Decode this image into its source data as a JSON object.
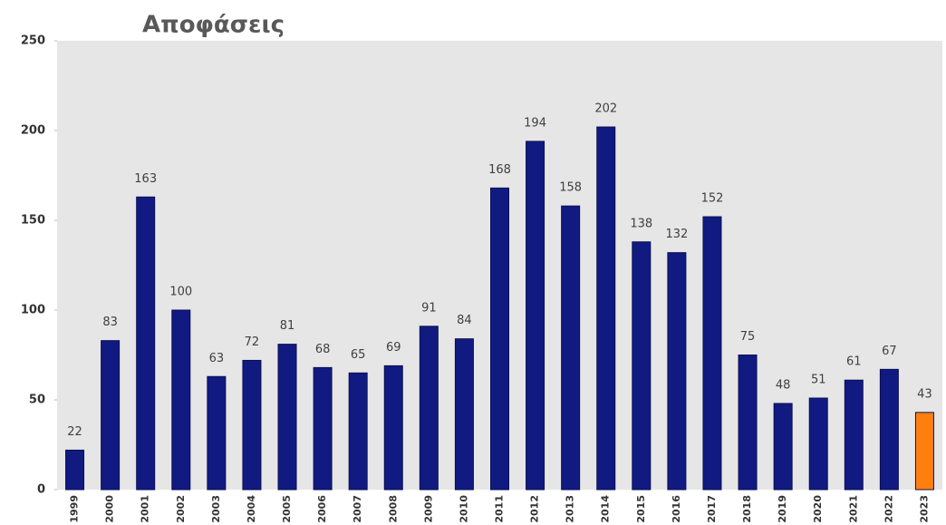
{
  "chart_data": {
    "type": "bar",
    "title": "Αποφάσεις",
    "categories": [
      "1999",
      "2000",
      "2001",
      "2002",
      "2003",
      "2004",
      "2005",
      "2006",
      "2007",
      "2008",
      "2009",
      "2010",
      "2011",
      "2012",
      "2013",
      "2014",
      "2015",
      "2016",
      "2017",
      "2018",
      "2019",
      "2020",
      "2021",
      "2022",
      "2023"
    ],
    "values": [
      22,
      83,
      163,
      100,
      63,
      72,
      81,
      68,
      65,
      69,
      91,
      84,
      168,
      194,
      158,
      202,
      138,
      132,
      152,
      75,
      48,
      51,
      61,
      67,
      43
    ],
    "colors": [
      "#111a80",
      "#111a80",
      "#111a80",
      "#111a80",
      "#111a80",
      "#111a80",
      "#111a80",
      "#111a80",
      "#111a80",
      "#111a80",
      "#111a80",
      "#111a80",
      "#111a80",
      "#111a80",
      "#111a80",
      "#111a80",
      "#111a80",
      "#111a80",
      "#111a80",
      "#111a80",
      "#111a80",
      "#111a80",
      "#111a80",
      "#111a80",
      "#ff7f0e"
    ],
    "ylim": [
      0,
      250
    ],
    "yticks": [
      0,
      50,
      100,
      150,
      200,
      250
    ],
    "grid": false
  }
}
